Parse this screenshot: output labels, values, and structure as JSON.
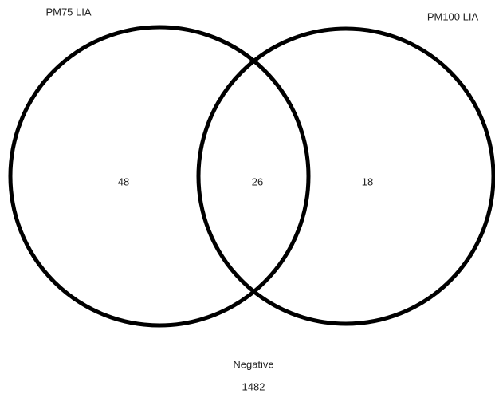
{
  "sets": [
    {
      "label": "PM75 LIA"
    },
    {
      "label": "PM100 LIA"
    }
  ],
  "regions": {
    "left_only": 48,
    "both": 26,
    "right_only": 18
  },
  "outside": {
    "label": "Negative",
    "value": 1482
  }
}
